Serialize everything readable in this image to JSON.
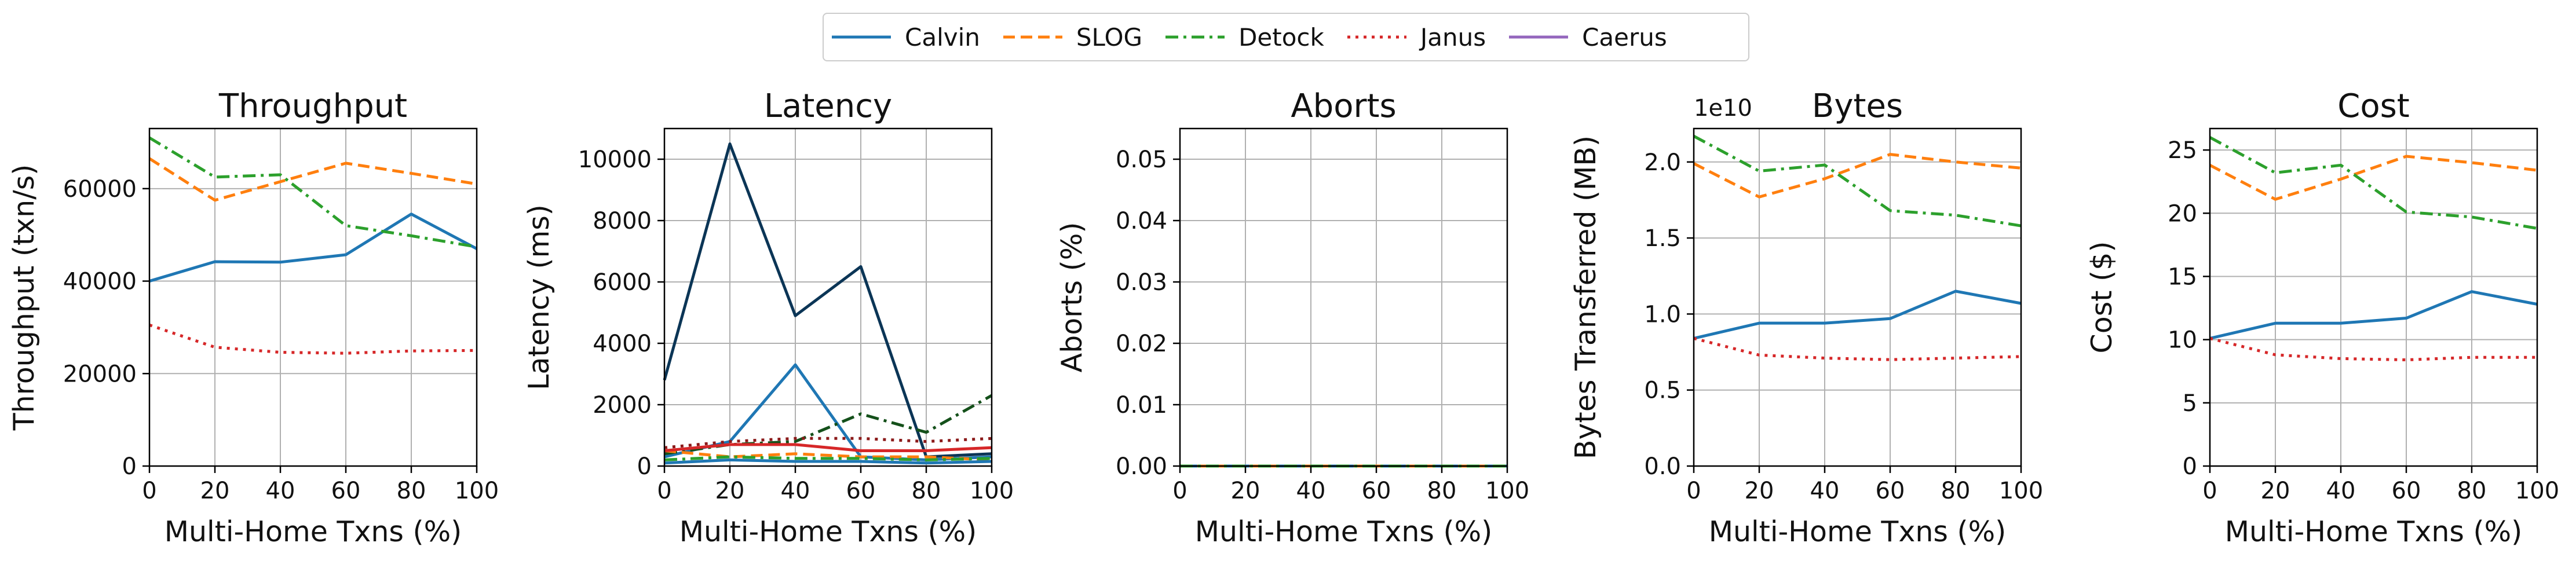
{
  "legend": {
    "entries": [
      {
        "name": "Calvin",
        "color": "#1f77b4",
        "dash": "solid"
      },
      {
        "name": "SLOG",
        "color": "#ff7f0e",
        "dash": "dashed"
      },
      {
        "name": "Detock",
        "color": "#2ca02c",
        "dash": "dashdot"
      },
      {
        "name": "Janus",
        "color": "#d62728",
        "dash": "dotted"
      },
      {
        "name": "Caerus",
        "color": "#9467bd",
        "dash": "solid"
      }
    ]
  },
  "chart_data": [
    {
      "type": "line",
      "title": "Throughput",
      "xlabel": "Multi-Home Txns (%)",
      "ylabel": "Throughput (txn/s)",
      "x": [
        0,
        20,
        40,
        60,
        80,
        100
      ],
      "xlim": [
        0,
        100
      ],
      "ylim": [
        0,
        73000
      ],
      "xticks": [
        "0",
        "20",
        "40",
        "60",
        "80",
        "100"
      ],
      "yticks": [
        0,
        20000,
        40000,
        60000
      ],
      "ytick_labels": [
        "0",
        "20000",
        "40000",
        "60000"
      ],
      "grid": true,
      "series": [
        {
          "name": "Calvin",
          "values": [
            40000,
            44200,
            44100,
            45700,
            54500,
            47000
          ]
        },
        {
          "name": "SLOG",
          "values": [
            66500,
            57500,
            61500,
            65500,
            63300,
            61000
          ]
        },
        {
          "name": "Detock",
          "values": [
            71000,
            62500,
            63000,
            52000,
            49800,
            47400
          ]
        },
        {
          "name": "Janus",
          "values": [
            30500,
            25700,
            24600,
            24400,
            24900,
            25000
          ]
        }
      ]
    },
    {
      "type": "line",
      "title": "Latency",
      "xlabel": "Multi-Home Txns (%)",
      "ylabel": "Latency (ms)",
      "x": [
        0,
        20,
        40,
        60,
        80,
        100
      ],
      "xlim": [
        0,
        100
      ],
      "ylim": [
        0,
        11000
      ],
      "xticks": [
        "0",
        "20",
        "40",
        "60",
        "80",
        "100"
      ],
      "yticks": [
        0,
        2000,
        4000,
        6000,
        8000,
        10000
      ],
      "ytick_labels": [
        "0",
        "2000",
        "4000",
        "6000",
        "8000",
        "10000"
      ],
      "grid": true,
      "series": [
        {
          "values": [
            2800,
            10500,
            4900,
            6500,
            300,
            400
          ],
          "color": "#0b3556",
          "dash": "solid"
        },
        {
          "values": [
            300,
            800,
            3300,
            300,
            200,
            300
          ],
          "color": "#1f77b4",
          "dash": "solid"
        },
        {
          "values": [
            400,
            700,
            800,
            1700,
            1100,
            2300
          ],
          "color": "#14501a",
          "dash": "dashdot"
        },
        {
          "values": [
            500,
            300,
            400,
            300,
            300,
            200
          ],
          "color": "#ff7f0e",
          "dash": "dashed"
        },
        {
          "values": [
            600,
            800,
            900,
            900,
            800,
            900
          ],
          "color": "#8b1a1a",
          "dash": "dotted"
        },
        {
          "values": [
            500,
            700,
            700,
            500,
            500,
            600
          ],
          "color": "#d62728",
          "dash": "solid"
        },
        {
          "values": [
            200,
            300,
            250,
            250,
            200,
            250
          ],
          "color": "#2ca02c",
          "dash": "dashdot"
        },
        {
          "values": [
            100,
            200,
            150,
            150,
            100,
            150
          ],
          "color": "#1f77b4",
          "dash": "solid"
        }
      ]
    },
    {
      "type": "line",
      "title": "Aborts",
      "xlabel": "Multi-Home Txns (%)",
      "ylabel": "Aborts (%)",
      "x": [
        0,
        20,
        40,
        60,
        80,
        100
      ],
      "xlim": [
        0,
        100
      ],
      "ylim": [
        0,
        0.055
      ],
      "xticks": [
        "0",
        "20",
        "40",
        "60",
        "80",
        "100"
      ],
      "yticks": [
        0,
        0.01,
        0.02,
        0.03,
        0.04,
        0.05
      ],
      "ytick_labels": [
        "0.00",
        "0.01",
        "0.02",
        "0.03",
        "0.04",
        "0.05"
      ],
      "grid": true,
      "series": [
        {
          "name": "Calvin",
          "values": [
            0,
            0,
            0,
            0,
            0,
            0
          ]
        },
        {
          "name": "SLOG",
          "values": [
            0,
            0,
            0,
            0,
            0,
            0
          ]
        },
        {
          "name": "Detock",
          "values": [
            0,
            0,
            0,
            0,
            0,
            0
          ]
        }
      ]
    },
    {
      "type": "line",
      "title": "Bytes",
      "xlabel": "Multi-Home Txns (%)",
      "ylabel": "Bytes Transferred (MB)",
      "offset_text": "1e10",
      "x": [
        0,
        20,
        40,
        60,
        80,
        100
      ],
      "xlim": [
        0,
        100
      ],
      "ylim": [
        0,
        2.22
      ],
      "xticks": [
        "0",
        "20",
        "40",
        "60",
        "80",
        "100"
      ],
      "yticks": [
        0,
        0.5,
        1.0,
        1.5,
        2.0
      ],
      "ytick_labels": [
        "0.0",
        "0.5",
        "1.0",
        "1.5",
        "2.0"
      ],
      "grid": true,
      "series": [
        {
          "name": "Calvin",
          "values": [
            0.84,
            0.94,
            0.94,
            0.97,
            1.15,
            1.07
          ]
        },
        {
          "name": "SLOG",
          "values": [
            1.99,
            1.77,
            1.89,
            2.05,
            2.0,
            1.96
          ]
        },
        {
          "name": "Detock",
          "values": [
            2.17,
            1.94,
            1.98,
            1.68,
            1.65,
            1.58
          ]
        },
        {
          "name": "Janus",
          "values": [
            0.84,
            0.73,
            0.71,
            0.7,
            0.71,
            0.72
          ]
        }
      ]
    },
    {
      "type": "line",
      "title": "Cost",
      "xlabel": "Multi-Home Txns (%)",
      "ylabel": "Cost ($)",
      "x": [
        0,
        20,
        40,
        60,
        80,
        100
      ],
      "xlim": [
        0,
        100
      ],
      "ylim": [
        0,
        26.7
      ],
      "xticks": [
        "0",
        "20",
        "40",
        "60",
        "80",
        "100"
      ],
      "yticks": [
        0,
        5,
        10,
        15,
        20,
        25
      ],
      "ytick_labels": [
        "0",
        "5",
        "10",
        "15",
        "20",
        "25"
      ],
      "grid": true,
      "series": [
        {
          "name": "Calvin",
          "values": [
            10.1,
            11.3,
            11.3,
            11.7,
            13.8,
            12.8
          ]
        },
        {
          "name": "SLOG",
          "values": [
            23.8,
            21.1,
            22.7,
            24.5,
            24.0,
            23.4
          ]
        },
        {
          "name": "Detock",
          "values": [
            26.0,
            23.2,
            23.8,
            20.1,
            19.7,
            18.8
          ]
        },
        {
          "name": "Janus",
          "values": [
            10.1,
            8.8,
            8.5,
            8.4,
            8.6,
            8.6
          ]
        }
      ]
    }
  ]
}
